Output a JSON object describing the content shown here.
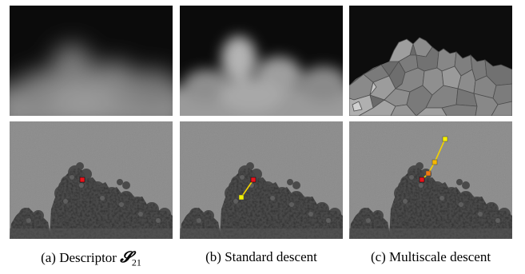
{
  "figure": {
    "captions": [
      {
        "prefix": "(a) Descriptor ",
        "symbol": "𝓢",
        "subscript": "21",
        "text": "(a) Descriptor 𝓢21"
      },
      {
        "text": "(b) Standard descent"
      },
      {
        "text": "(c) Multiscale descent"
      }
    ],
    "panels": {
      "top": [
        {
          "kind": "blurred-descriptor-map"
        },
        {
          "kind": "blurred-descriptor-map"
        },
        {
          "kind": "segmented-descriptor-map"
        }
      ],
      "bottom": [
        {
          "kind": "tree-photo-start-point",
          "path_colors": [
            "#e8141c"
          ]
        },
        {
          "kind": "tree-photo-standard-path",
          "path_colors": [
            "#e8141c",
            "#f2f200"
          ]
        },
        {
          "kind": "tree-photo-multiscale-path",
          "path_colors": [
            "#e8141c",
            "#f27a12",
            "#f5b800",
            "#f7f000"
          ]
        }
      ]
    },
    "colors": {
      "start": "#e8141c",
      "end": "#f7f000",
      "mid": "#f27a12",
      "line": "#f2d200"
    }
  }
}
